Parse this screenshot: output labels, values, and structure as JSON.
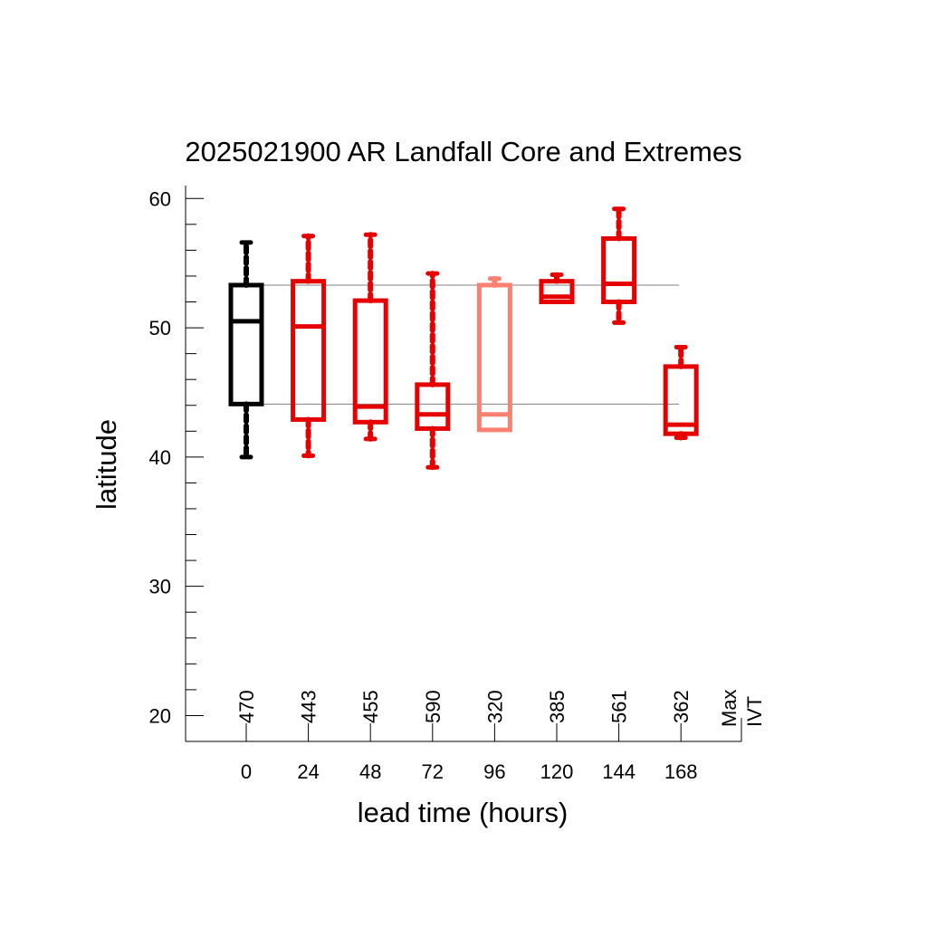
{
  "chart_data": {
    "type": "box",
    "title": "2025021900 AR Landfall Core and Extremes",
    "xlabel": "lead time (hours)",
    "ylabel": "latitude",
    "ylim": [
      18,
      61
    ],
    "yticks_major": [
      20,
      30,
      40,
      50,
      60
    ],
    "yticks_minor_step": 2,
    "x_categories": [
      "0",
      "24",
      "48",
      "72",
      "96",
      "120",
      "144",
      "168"
    ],
    "reference_lines": [
      53.3,
      44.1
    ],
    "max_ivt_header": [
      "Max",
      "IVT"
    ],
    "series": [
      {
        "lead": "0",
        "max_ivt": "470",
        "whisker_low": 40.0,
        "q1": 44.1,
        "median": 50.5,
        "q3": 53.3,
        "whisker_high": 56.6,
        "color": "#000000"
      },
      {
        "lead": "24",
        "max_ivt": "443",
        "whisker_low": 40.1,
        "q1": 42.9,
        "median": 50.1,
        "q3": 53.6,
        "whisker_high": 57.1,
        "color": "#e60000"
      },
      {
        "lead": "48",
        "max_ivt": "455",
        "whisker_low": 41.4,
        "q1": 42.7,
        "median": 43.9,
        "q3": 52.1,
        "whisker_high": 57.2,
        "color": "#e60000"
      },
      {
        "lead": "72",
        "max_ivt": "590",
        "whisker_low": 39.2,
        "q1": 42.2,
        "median": 43.3,
        "q3": 45.6,
        "whisker_high": 54.2,
        "color": "#e60000"
      },
      {
        "lead": "96",
        "max_ivt": "320",
        "whisker_low": 42.1,
        "q1": 42.1,
        "median": 43.3,
        "q3": 53.3,
        "whisker_high": 53.8,
        "color": "#fa8072"
      },
      {
        "lead": "120",
        "max_ivt": "385",
        "whisker_low": 52.0,
        "q1": 52.0,
        "median": 52.4,
        "q3": 53.6,
        "whisker_high": 54.1,
        "color": "#e60000"
      },
      {
        "lead": "144",
        "max_ivt": "561",
        "whisker_low": 50.4,
        "q1": 52.0,
        "median": 53.4,
        "q3": 56.9,
        "whisker_high": 59.2,
        "color": "#e60000"
      },
      {
        "lead": "168",
        "max_ivt": "362",
        "whisker_low": 41.5,
        "q1": 41.8,
        "median": 42.5,
        "q3": 47.0,
        "whisker_high": 48.5,
        "color": "#e60000"
      }
    ]
  }
}
